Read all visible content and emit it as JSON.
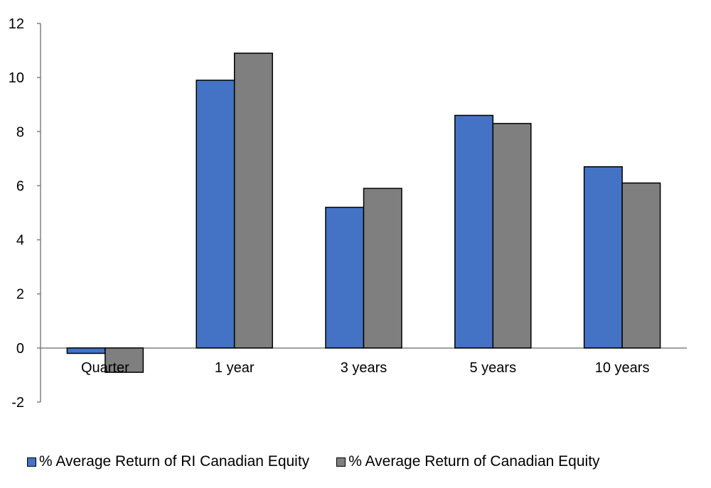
{
  "chart_data": {
    "type": "bar",
    "categories": [
      "Quarter",
      "1 year",
      "3 years",
      "5 years",
      "10 years"
    ],
    "series": [
      {
        "name": "% Average Return of RI Canadian Equity",
        "color": "#4472C4",
        "values": [
          -0.2,
          9.9,
          5.2,
          8.6,
          6.7
        ]
      },
      {
        "name": "% Average Return of Canadian Equity",
        "color": "#7F7F7F",
        "values": [
          -0.9,
          10.9,
          5.9,
          8.3,
          6.1
        ]
      }
    ],
    "ylim": [
      -2,
      12
    ],
    "yticks": [
      -2,
      0,
      2,
      4,
      6,
      8,
      10,
      12
    ],
    "ytick_labels": [
      "-2",
      "0",
      "2",
      "4",
      "6",
      "8",
      "10",
      "12"
    ],
    "title": "",
    "xlabel": "",
    "ylabel": "",
    "grid": false,
    "legend_position": "bottom"
  }
}
